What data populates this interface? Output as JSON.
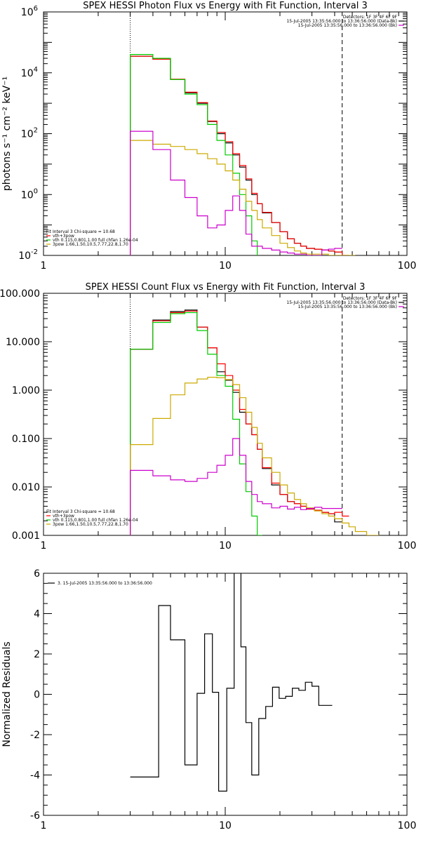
{
  "chart_data": [
    {
      "type": "line",
      "id": "photon",
      "title": "SPEX HESSI Photon Flux vs Energy with Fit Function, Interval 3",
      "ylabel": "photons s⁻¹ cm⁻² keV⁻¹",
      "xlim": [
        1,
        100
      ],
      "ylim": [
        0.01,
        1000000
      ],
      "xscale": "log",
      "yscale": "log",
      "xticks": [
        {
          "v": 1,
          "label": "1"
        },
        {
          "v": 10,
          "label": "10"
        },
        {
          "v": 100,
          "label": "100"
        }
      ],
      "yticks": [
        {
          "v": 0.01,
          "base": "10",
          "exp": "-2"
        },
        {
          "v": 1,
          "base": "10",
          "exp": "0"
        },
        {
          "v": 100,
          "base": "10",
          "exp": "2"
        },
        {
          "v": 10000,
          "base": "10",
          "exp": "4"
        },
        {
          "v": 1000000,
          "base": "10",
          "exp": "6"
        }
      ],
      "vlines": [
        {
          "x": 3,
          "style": "dotted"
        },
        {
          "x": 44,
          "style": "dashed"
        }
      ],
      "legend_tr": [
        {
          "text": "Detectors: 1F 3F 4F 6F 9F",
          "color": ""
        },
        {
          "text": "15-Jul-2005 13:35:56.000 to 13:36:56.000 (Data-Bk)",
          "color": "#000000"
        },
        {
          "text": "15-Jul-2005 13:35:56.000 to 13:36:56.000 (Bk)",
          "color": "#cc00cc"
        }
      ],
      "legend_bl": [
        {
          "text": "Fit Interval 3    Chi-square = 10.68",
          "color": ""
        },
        {
          "text": "vth+3pow",
          "color": "#ff0000"
        },
        {
          "text": "vth 0.115,0.801,1.00  full chfan 1.26e-04",
          "color": "#00cc00"
        },
        {
          "text": "3pow 1.66,1.50,10.5,7.77,22.8,1.70",
          "color": "#ccaa00"
        }
      ],
      "x_edges": [
        3,
        4,
        5,
        6,
        7,
        8,
        9,
        10,
        11,
        12,
        13,
        14,
        15,
        16,
        18,
        20,
        22,
        24,
        26,
        28,
        31,
        34,
        37,
        40,
        44,
        48,
        52
      ],
      "series": [
        {
          "color": "#000000",
          "values": [
            35000,
            28000,
            6000,
            2200,
            1000,
            250,
            100,
            50,
            20,
            8,
            3,
            1,
            0.5,
            0.25,
            0.12,
            0.06,
            0.035,
            0.025,
            0.02,
            0.017,
            0.016,
            0.015,
            0.014,
            0.013,
            null,
            null
          ]
        },
        {
          "color": "#ff0000",
          "values": [
            35000,
            28000,
            6200,
            2300,
            1050,
            260,
            110,
            55,
            22,
            9,
            3.3,
            1.1,
            0.5,
            0.26,
            0.12,
            0.06,
            0.035,
            0.025,
            0.02,
            0.017,
            0.016,
            0.015,
            0.014,
            0.013,
            0.01,
            null
          ]
        },
        {
          "color": "#00cc00",
          "values": [
            40000,
            30000,
            6000,
            2000,
            900,
            200,
            60,
            20,
            5,
            1,
            0.2,
            0.03,
            0.005,
            null,
            null,
            null,
            null,
            null,
            null,
            null,
            null,
            null,
            null,
            null,
            null,
            null
          ]
        },
        {
          "color": "#ccaa00",
          "values": [
            60,
            45,
            38,
            30,
            22,
            15,
            10,
            6,
            3,
            1.5,
            0.6,
            0.3,
            0.15,
            0.08,
            0.045,
            0.025,
            0.018,
            0.014,
            0.012,
            0.011,
            0.011,
            0.011,
            0.01,
            0.01,
            0.01,
            0.01
          ]
        },
        {
          "color": "#cc00cc",
          "values": [
            120,
            30,
            3,
            0.8,
            0.2,
            0.08,
            0.1,
            0.3,
            0.9,
            0.3,
            0.05,
            0.02,
            0.02,
            0.017,
            0.015,
            0.013,
            0.012,
            0.011,
            0.011,
            0.01,
            0.01,
            0.015,
            0.016,
            0.017,
            null,
            null
          ]
        }
      ]
    },
    {
      "type": "line",
      "id": "count",
      "title": "SPEX HESSI Count Flux vs Energy with Fit Function, Interval 3",
      "ylabel": "",
      "xlim": [
        1,
        100
      ],
      "ylim": [
        0.001,
        100
      ],
      "xscale": "log",
      "yscale": "log",
      "xticks": [
        {
          "v": 1,
          "label": "1"
        },
        {
          "v": 10,
          "label": "10"
        },
        {
          "v": 100,
          "label": "100"
        }
      ],
      "yticks": [
        {
          "v": 0.001,
          "label": "0.001"
        },
        {
          "v": 0.01,
          "label": "0.010"
        },
        {
          "v": 0.1,
          "label": "0.100"
        },
        {
          "v": 1,
          "label": "1.000"
        },
        {
          "v": 10,
          "label": "10.000"
        },
        {
          "v": 100,
          "label": "100.000"
        }
      ],
      "vlines": [
        {
          "x": 3,
          "style": "dotted"
        },
        {
          "x": 44,
          "style": "dashed"
        }
      ],
      "legend_tr": [
        {
          "text": "Detectors: 1F 3F 4F 6F 9F",
          "color": ""
        },
        {
          "text": "15-Jul-2005 13:35:56.000 to 13:36:56.000 (Data-Bk)",
          "color": "#000000"
        },
        {
          "text": "15-Jul-2005 13:35:56.000 to 13:36:56.000 (Bk)",
          "color": "#cc00cc"
        }
      ],
      "legend_bl": [
        {
          "text": "Fit Interval 3    Chi-square = 10.68",
          "color": ""
        },
        {
          "text": "vth+3pow",
          "color": "#ff0000"
        },
        {
          "text": "vth 0.115,0.801,1.00  full chfan 1.26e-04",
          "color": "#00cc00"
        },
        {
          "text": "3pow 1.66,1.50,10.5,7.77,22.8,1.70",
          "color": "#ccaa00"
        }
      ],
      "x_edges": [
        3,
        4,
        5,
        6,
        7,
        8,
        9,
        10,
        11,
        12,
        13,
        14,
        15,
        16,
        18,
        20,
        22,
        24,
        26,
        28,
        31,
        34,
        37,
        40,
        44,
        48,
        52,
        60,
        70,
        80
      ],
      "series": [
        {
          "color": "#000000",
          "values": [
            7,
            28,
            42,
            45,
            20,
            7.5,
            2.4,
            1.6,
            0.9,
            0.35,
            0.2,
            0.12,
            0.06,
            0.024,
            0.011,
            0.007,
            0.005,
            0.0045,
            0.004,
            0.0035,
            0.0033,
            0.003,
            0.0028,
            0.0019,
            null,
            null,
            null,
            null,
            null
          ]
        },
        {
          "color": "#ff0000",
          "values": [
            7,
            27,
            40,
            43,
            20,
            7.5,
            3.5,
            2.0,
            1.0,
            0.4,
            0.2,
            0.12,
            0.06,
            0.025,
            0.012,
            0.007,
            0.005,
            0.0045,
            0.004,
            0.0035,
            0.0033,
            0.003,
            0.0028,
            0.003,
            0.0025,
            null,
            null,
            null,
            null
          ]
        },
        {
          "color": "#00cc00",
          "values": [
            7,
            25,
            38,
            40,
            17,
            5.5,
            2.0,
            1.2,
            0.25,
            0.03,
            0.008,
            0.0025,
            0.001,
            null,
            null,
            null,
            null,
            null,
            null,
            null,
            null,
            null,
            null,
            null,
            null,
            null,
            null,
            null,
            null
          ]
        },
        {
          "color": "#ccaa00",
          "values": [
            0.075,
            0.26,
            0.8,
            1.4,
            1.7,
            1.85,
            1.8,
            1.65,
            1.3,
            0.7,
            0.35,
            0.17,
            0.08,
            0.04,
            0.02,
            0.011,
            0.0075,
            0.0055,
            0.0045,
            0.0037,
            0.0032,
            0.0028,
            0.0025,
            0.0022,
            0.0018,
            0.0015,
            0.0012,
            0.001,
            0.00085
          ]
        },
        {
          "color": "#cc00cc",
          "values": [
            0.022,
            0.017,
            0.014,
            0.013,
            0.015,
            0.02,
            0.028,
            0.045,
            0.1,
            0.045,
            0.013,
            0.007,
            0.005,
            0.0045,
            0.0037,
            0.004,
            0.0035,
            0.0038,
            0.0034,
            0.0036,
            0.0038,
            0.0036,
            0.0036,
            0.0036,
            null,
            null,
            null,
            null,
            null
          ]
        }
      ]
    },
    {
      "type": "line",
      "id": "resid",
      "title": "",
      "ylabel": "Normalized Residuals",
      "xlim": [
        1,
        100
      ],
      "ylim": [
        -6,
        6
      ],
      "xscale": "log",
      "yscale": "linear",
      "xticks": [
        {
          "v": 1,
          "label": "1"
        },
        {
          "v": 10,
          "label": "10"
        },
        {
          "v": 100,
          "label": "100"
        }
      ],
      "yticks": [
        {
          "v": -6,
          "label": "-6"
        },
        {
          "v": -4,
          "label": "-4"
        },
        {
          "v": -2,
          "label": "-2"
        },
        {
          "v": 0,
          "label": "0"
        },
        {
          "v": 2,
          "label": "2"
        },
        {
          "v": 4,
          "label": "4"
        },
        {
          "v": 6,
          "label": "6"
        }
      ],
      "vlines": [],
      "legend_tr": [],
      "legend_tl": [
        {
          "text": "3. 15-Jul-2005 13:35:56.000 to 13:36:56.000",
          "color": "#000000"
        }
      ],
      "legend_bl": [],
      "x_edges": [
        3,
        3.7,
        4.3,
        5,
        6,
        7,
        7.7,
        8.5,
        9.2,
        10.2,
        11.2,
        12.2,
        13,
        14,
        15.3,
        16.7,
        18.2,
        19.8,
        21.5,
        23.4,
        25.4,
        27.6,
        30,
        32.7,
        35.6,
        38.8,
        42.4,
        45.2
      ],
      "series": [
        {
          "color": "#000000",
          "values": [
            -4.1,
            -4.1,
            4.4,
            2.7,
            -3.5,
            0.05,
            3.0,
            0.1,
            -4.8,
            0.3,
            6.5,
            2.35,
            -1.4,
            -4.0,
            -1.2,
            -0.6,
            0.35,
            -0.2,
            -0.1,
            0.3,
            0.2,
            0.6,
            0.4,
            -0.55,
            -0.55,
            null,
            null
          ]
        }
      ]
    }
  ]
}
